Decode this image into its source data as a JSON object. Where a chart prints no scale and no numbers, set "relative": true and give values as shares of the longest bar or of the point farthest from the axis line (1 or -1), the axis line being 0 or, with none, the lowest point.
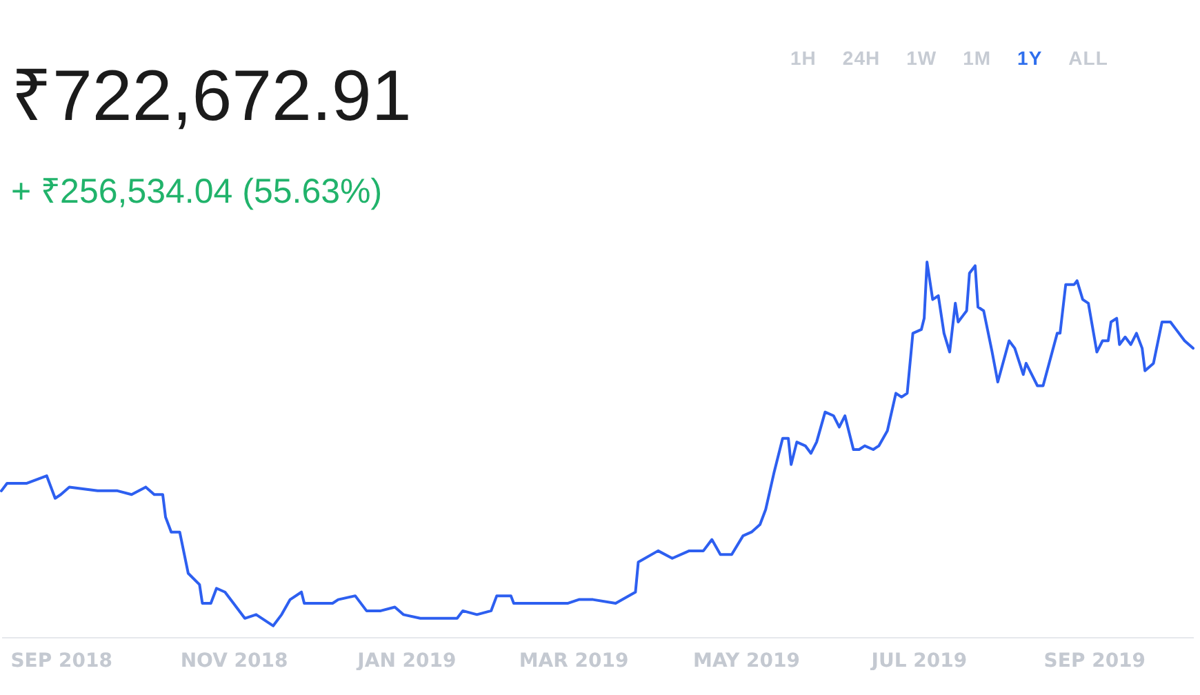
{
  "chart_data": {
    "type": "line",
    "relative": true,
    "grid": false,
    "marker": "none",
    "line_style": "solid",
    "annotations": [
      "₹722,672.91",
      "+ ₹256,534.04 (55.63%)",
      "1H",
      "24H",
      "1W",
      "1M",
      "1Y",
      "ALL"
    ],
    "xlim": [
      "2018-08-11",
      "2019-10-06"
    ],
    "xticks": [
      {
        "value": "2018-09-01",
        "label": "SEP 2018"
      },
      {
        "value": "2018-11-01",
        "label": "NOV 2018"
      },
      {
        "value": "2019-01-01",
        "label": "JAN 2019"
      },
      {
        "value": "2019-03-01",
        "label": "MAR 2019"
      },
      {
        "value": "2019-05-01",
        "label": "MAY 2019"
      },
      {
        "value": "2019-07-01",
        "label": "JUL 2019"
      },
      {
        "value": "2019-09-01",
        "label": "SEP 2019"
      }
    ],
    "x": [
      "2018-08-11",
      "2018-08-13",
      "2018-08-15",
      "2018-08-20",
      "2018-08-27",
      "2018-08-30",
      "2018-09-01",
      "2018-09-04",
      "2018-09-14",
      "2018-09-21",
      "2018-09-26",
      "2018-10-01",
      "2018-10-04",
      "2018-10-07",
      "2018-10-08",
      "2018-10-10",
      "2018-10-13",
      "2018-10-16",
      "2018-10-20",
      "2018-10-21",
      "2018-10-24",
      "2018-10-26",
      "2018-10-29",
      "2018-11-01",
      "2018-11-05",
      "2018-11-09",
      "2018-11-15",
      "2018-11-18",
      "2018-11-21",
      "2018-11-25",
      "2018-11-26",
      "2018-12-01",
      "2018-12-06",
      "2018-12-08",
      "2018-12-14",
      "2018-12-18",
      "2018-12-23",
      "2018-12-28",
      "2018-12-31",
      "2019-01-06",
      "2019-01-14",
      "2019-01-19",
      "2019-01-21",
      "2019-01-26",
      "2019-01-31",
      "2019-02-02",
      "2019-02-07",
      "2019-02-08",
      "2019-02-17",
      "2019-02-22",
      "2019-02-27",
      "2019-03-03",
      "2019-03-08",
      "2019-03-16",
      "2019-03-23",
      "2019-03-24",
      "2019-03-31",
      "2019-04-05",
      "2019-04-11",
      "2019-04-16",
      "2019-04-19",
      "2019-04-22",
      "2019-04-26",
      "2019-04-30",
      "2019-05-03",
      "2019-05-06",
      "2019-05-08",
      "2019-05-11",
      "2019-05-14",
      "2019-05-16",
      "2019-05-17",
      "2019-05-19",
      "2019-05-22",
      "2019-05-24",
      "2019-05-26",
      "2019-05-29",
      "2019-06-01",
      "2019-06-03",
      "2019-06-05",
      "2019-06-08",
      "2019-06-10",
      "2019-06-12",
      "2019-06-15",
      "2019-06-17",
      "2019-06-20",
      "2019-06-23",
      "2019-06-25",
      "2019-06-27",
      "2019-06-29",
      "2019-07-02",
      "2019-07-03",
      "2019-07-04",
      "2019-07-06",
      "2019-07-08",
      "2019-07-10",
      "2019-07-12",
      "2019-07-14",
      "2019-07-15",
      "2019-07-17",
      "2019-07-18",
      "2019-07-19",
      "2019-07-21",
      "2019-07-22",
      "2019-07-24",
      "2019-07-27",
      "2019-07-29",
      "2019-08-02",
      "2019-08-04",
      "2019-08-07",
      "2019-08-08",
      "2019-08-10",
      "2019-08-12",
      "2019-08-14",
      "2019-08-19",
      "2019-08-20",
      "2019-08-22",
      "2019-08-25",
      "2019-08-26",
      "2019-08-28",
      "2019-08-30",
      "2019-09-02",
      "2019-09-04",
      "2019-09-06",
      "2019-09-07",
      "2019-09-09",
      "2019-09-10",
      "2019-09-12",
      "2019-09-14",
      "2019-09-16",
      "2019-09-18",
      "2019-09-19",
      "2019-09-22",
      "2019-09-25",
      "2019-09-28",
      "2019-09-30",
      "2019-10-03",
      "2019-10-06"
    ],
    "series": [
      {
        "color": "#2d5ff0",
        "values": [
          0.39,
          0.41,
          0.41,
          0.41,
          0.43,
          0.37,
          0.38,
          0.4,
          0.39,
          0.39,
          0.38,
          0.4,
          0.38,
          0.38,
          0.32,
          0.28,
          0.28,
          0.17,
          0.14,
          0.09,
          0.09,
          0.13,
          0.12,
          0.09,
          0.05,
          0.06,
          0.03,
          0.06,
          0.1,
          0.12,
          0.09,
          0.09,
          0.09,
          0.1,
          0.11,
          0.07,
          0.07,
          0.08,
          0.06,
          0.05,
          0.05,
          0.05,
          0.07,
          0.06,
          0.07,
          0.11,
          0.11,
          0.09,
          0.09,
          0.09,
          0.09,
          0.1,
          0.1,
          0.09,
          0.12,
          0.2,
          0.23,
          0.21,
          0.23,
          0.23,
          0.26,
          0.22,
          0.22,
          0.27,
          0.28,
          0.3,
          0.34,
          0.44,
          0.53,
          0.53,
          0.46,
          0.52,
          0.51,
          0.49,
          0.52,
          0.6,
          0.59,
          0.56,
          0.59,
          0.5,
          0.5,
          0.51,
          0.5,
          0.51,
          0.55,
          0.65,
          0.64,
          0.65,
          0.81,
          0.82,
          0.85,
          1,
          0.9,
          0.91,
          0.81,
          0.76,
          0.89,
          0.84,
          0.86,
          0.87,
          0.97,
          0.99,
          0.88,
          0.87,
          0.76,
          0.68,
          0.79,
          0.77,
          0.7,
          0.73,
          0.7,
          0.67,
          0.67,
          0.81,
          0.81,
          0.94,
          0.94,
          0.95,
          0.9,
          0.89,
          0.76,
          0.79,
          0.79,
          0.84,
          0.85,
          0.78,
          0.8,
          0.78,
          0.81,
          0.77,
          0.71,
          0.73,
          0.84,
          0.84,
          0.82,
          0.79,
          0.77
        ]
      }
    ]
  }
}
